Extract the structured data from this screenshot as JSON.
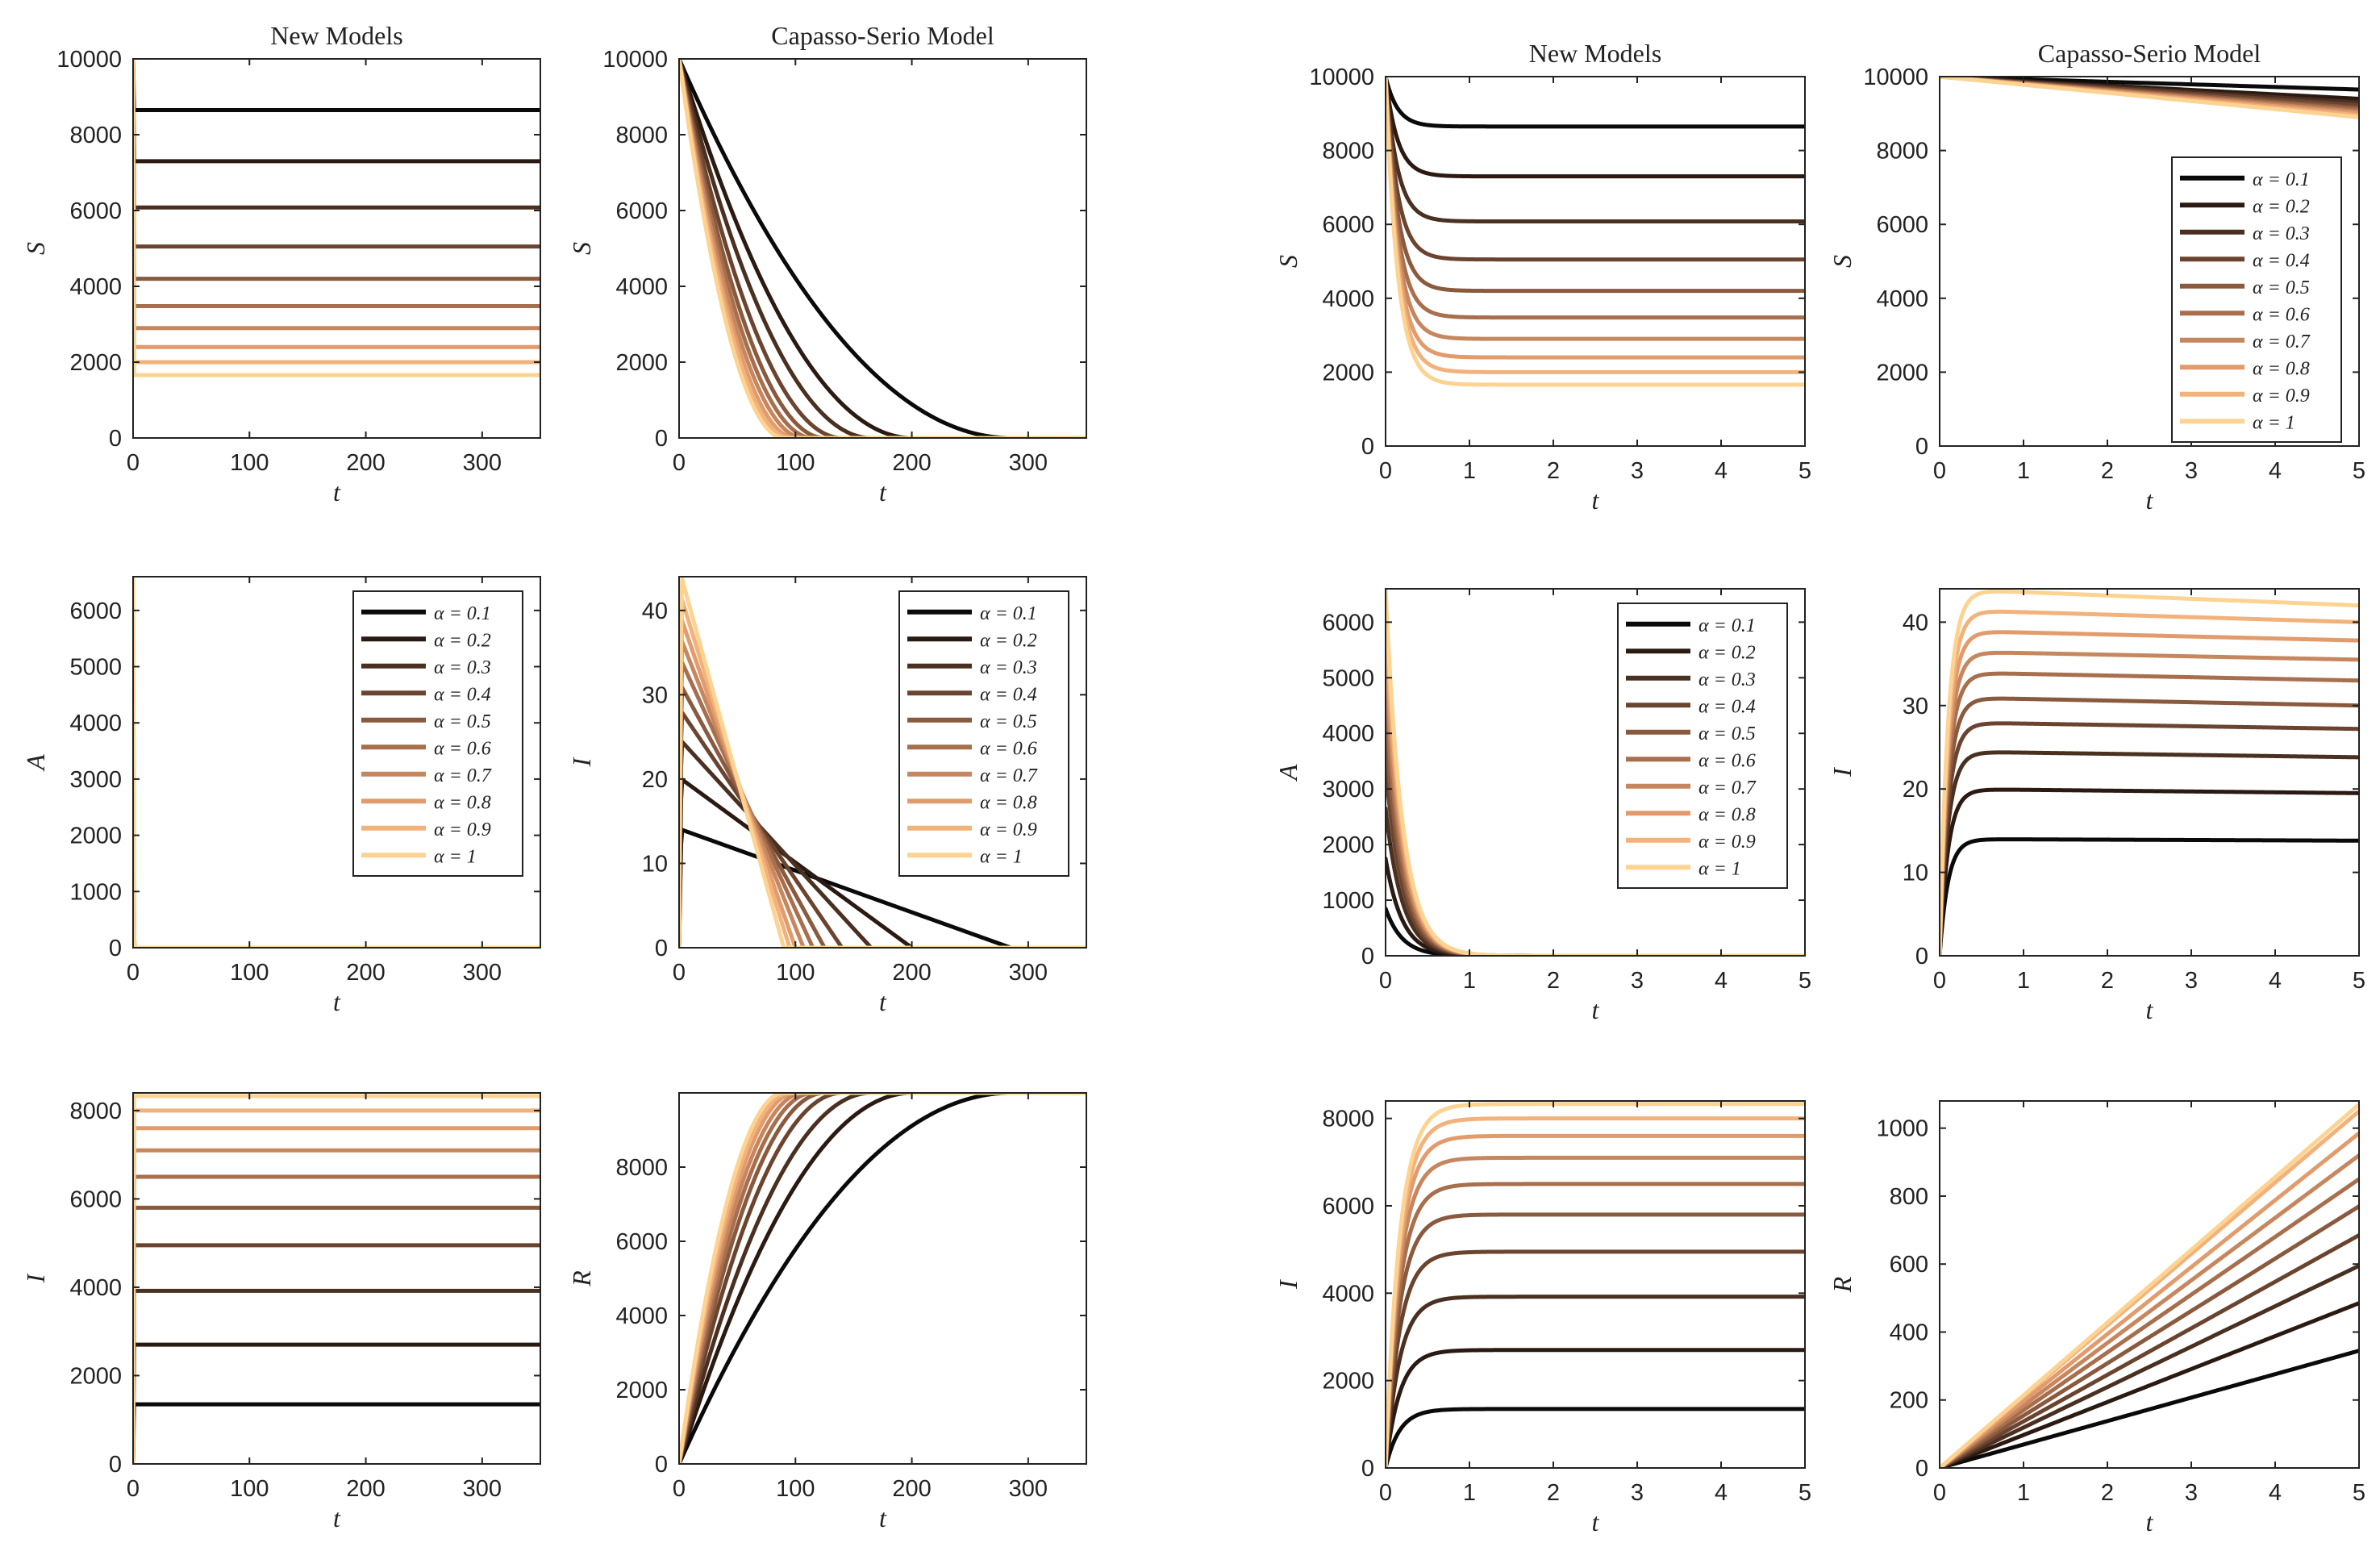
{
  "alpha_colors": [
    "#0a0a0a",
    "#2b1a12",
    "#4a3021",
    "#6b4430",
    "#8a5a3f",
    "#a86f4e",
    "#c6865e",
    "#e19b6c",
    "#f2b27b",
    "#fdd392"
  ],
  "legend": {
    "entries": [
      "α = 0.1",
      "α = 0.2",
      "α = 0.3",
      "α = 0.4",
      "α = 0.5",
      "α = 0.6",
      "α = 0.7",
      "α = 0.8",
      "α = 0.9",
      "α = 1"
    ]
  },
  "chart_data": [
    {
      "id": "new-S-long",
      "type": "line",
      "title": "New Models",
      "xlabel": "t",
      "ylabel": "S",
      "xlim": [
        0,
        350
      ],
      "ylim": [
        0,
        10000
      ],
      "xticks": [
        0,
        100,
        200,
        300
      ],
      "yticks": [
        0,
        2000,
        4000,
        6000,
        8000,
        10000
      ],
      "model": "exp",
      "y0": 10000,
      "plateaus": [
        8650,
        7300,
        6080,
        5050,
        4200,
        3480,
        2900,
        2400,
        2000,
        1660
      ],
      "rates": [
        80,
        80,
        80,
        80,
        80,
        80,
        80,
        80,
        80,
        80
      ],
      "legend": false
    },
    {
      "id": "cs-S-long",
      "type": "line",
      "title": "Capasso-Serio Model",
      "xlabel": "t",
      "ylabel": "S",
      "xlim": [
        0,
        350
      ],
      "ylim": [
        0,
        10000
      ],
      "xticks": [
        0,
        100,
        200,
        300
      ],
      "yticks": [
        0,
        2000,
        4000,
        6000,
        8000,
        10000
      ],
      "model": "quad_down",
      "y0": 10000,
      "t_end": [
        285,
        200,
        165,
        140,
        125,
        115,
        107,
        100,
        95,
        90
      ],
      "legend": false
    },
    {
      "id": "new-A-long",
      "type": "line",
      "title": "",
      "xlabel": "t",
      "ylabel": "A",
      "xlim": [
        0,
        350
      ],
      "ylim": [
        0,
        6600
      ],
      "xticks": [
        0,
        100,
        200,
        300
      ],
      "yticks": [
        0,
        1000,
        2000,
        3000,
        4000,
        5000,
        6000
      ],
      "model": "pulse",
      "peaks": [
        850,
        1750,
        2650,
        3400,
        4050,
        4650,
        5200,
        5700,
        6150,
        6600
      ],
      "rates": [
        4,
        4,
        4,
        4,
        4,
        4,
        4,
        4,
        4,
        4
      ],
      "legend": true,
      "legend_pos": "top-right"
    },
    {
      "id": "cs-I-long",
      "type": "line",
      "title": "",
      "xlabel": "t",
      "ylabel": "I",
      "xlim": [
        0,
        350
      ],
      "ylim": [
        0,
        44
      ],
      "xticks": [
        0,
        100,
        200,
        300
      ],
      "yticks": [
        0,
        10,
        20,
        30,
        40
      ],
      "model": "lin_down",
      "y_peak": [
        14,
        20,
        24.5,
        28,
        31,
        34,
        36.5,
        39,
        41.5,
        44
      ],
      "t_end": [
        285,
        200,
        165,
        140,
        125,
        115,
        107,
        100,
        95,
        90
      ],
      "legend": true,
      "legend_pos": "top-right"
    },
    {
      "id": "new-I-long",
      "type": "line",
      "title": "",
      "xlabel": "t",
      "ylabel": "I",
      "xlim": [
        0,
        350
      ],
      "ylim": [
        0,
        8400
      ],
      "xticks": [
        0,
        100,
        200,
        300
      ],
      "yticks": [
        0,
        2000,
        4000,
        6000,
        8000
      ],
      "model": "sat",
      "plateaus": [
        1350,
        2700,
        3920,
        4950,
        5800,
        6500,
        7100,
        7600,
        8000,
        8330
      ],
      "rates": [
        80,
        80,
        80,
        80,
        80,
        80,
        80,
        80,
        80,
        80
      ],
      "legend": false
    },
    {
      "id": "cs-R-long",
      "type": "line",
      "title": "",
      "xlabel": "t",
      "ylabel": "R",
      "xlim": [
        0,
        350
      ],
      "ylim": [
        0,
        10000
      ],
      "xticks": [
        0,
        100,
        200,
        300
      ],
      "yticks": [
        0,
        2000,
        4000,
        6000,
        8000
      ],
      "model": "quad_up",
      "y_max": 10000,
      "t_end": [
        285,
        200,
        165,
        140,
        125,
        115,
        107,
        100,
        95,
        90
      ],
      "legend": false
    },
    {
      "id": "new-S-short",
      "type": "line",
      "title": "New Models",
      "xlabel": "t",
      "ylabel": "S",
      "xlim": [
        0,
        5
      ],
      "ylim": [
        0,
        10000
      ],
      "xticks": [
        0,
        1,
        2,
        3,
        4,
        5
      ],
      "yticks": [
        0,
        2000,
        4000,
        6000,
        8000,
        10000
      ],
      "model": "exp",
      "y0": 10000,
      "plateaus": [
        8650,
        7300,
        6080,
        5050,
        4200,
        3480,
        2900,
        2400,
        2000,
        1660
      ],
      "rates": [
        7,
        7,
        7,
        7,
        7,
        7,
        7,
        7,
        7,
        7
      ],
      "legend": false
    },
    {
      "id": "cs-S-short",
      "type": "line",
      "title": "Capasso-Serio Model",
      "xlabel": "t",
      "ylabel": "S",
      "xlim": [
        0,
        5
      ],
      "ylim": [
        0,
        10000
      ],
      "xticks": [
        0,
        1,
        2,
        3,
        4,
        5
      ],
      "yticks": [
        0,
        2000,
        4000,
        6000,
        8000,
        10000
      ],
      "model": "linear_slope",
      "y0": 10000,
      "slopes": [
        -70,
        -120,
        -140,
        -155,
        -170,
        -180,
        -190,
        -200,
        -210,
        -220
      ],
      "legend": true,
      "legend_pos": "right"
    },
    {
      "id": "new-A-short",
      "type": "line",
      "title": "",
      "xlabel": "t",
      "ylabel": "A",
      "xlim": [
        0,
        5
      ],
      "ylim": [
        0,
        6600
      ],
      "xticks": [
        0,
        1,
        2,
        3,
        4,
        5
      ],
      "yticks": [
        0,
        1000,
        2000,
        3000,
        4000,
        5000,
        6000
      ],
      "model": "pulse",
      "peaks": [
        850,
        1750,
        2650,
        3400,
        4050,
        4650,
        5200,
        5700,
        6150,
        6600
      ],
      "rates": [
        5,
        5,
        5,
        5,
        5,
        5,
        5,
        5,
        5,
        5
      ],
      "legend": true,
      "legend_pos": "top-right"
    },
    {
      "id": "cs-I-short",
      "type": "line",
      "title": "",
      "xlabel": "t",
      "ylabel": "I",
      "xlim": [
        0,
        5
      ],
      "ylim": [
        0,
        44
      ],
      "xticks": [
        0,
        1,
        2,
        3,
        4,
        5
      ],
      "yticks": [
        0,
        10,
        20,
        30,
        40
      ],
      "model": "rise_decay",
      "peaks": [
        14,
        20,
        24.5,
        28,
        31,
        34,
        36.5,
        39,
        41.5,
        44
      ],
      "end": [
        13.8,
        19.5,
        23.8,
        27.2,
        30,
        33,
        35.5,
        37.8,
        40,
        42
      ],
      "rates": [
        10,
        10,
        10,
        10,
        10,
        10,
        10,
        10,
        10,
        10
      ],
      "legend": false
    },
    {
      "id": "new-I-short",
      "type": "line",
      "title": "",
      "xlabel": "t",
      "ylabel": "I",
      "xlim": [
        0,
        5
      ],
      "ylim": [
        0,
        8400
      ],
      "xticks": [
        0,
        1,
        2,
        3,
        4,
        5
      ],
      "yticks": [
        0,
        2000,
        4000,
        6000,
        8000
      ],
      "model": "sat",
      "plateaus": [
        1350,
        2700,
        3920,
        4950,
        5800,
        6500,
        7100,
        7600,
        8000,
        8330
      ],
      "rates": [
        6,
        6,
        6,
        6,
        6,
        6,
        6,
        6,
        6,
        6
      ],
      "legend": false
    },
    {
      "id": "cs-R-short",
      "type": "line",
      "title": "",
      "xlabel": "t",
      "ylabel": "R",
      "xlim": [
        0,
        5
      ],
      "ylim": [
        0,
        1080
      ],
      "xticks": [
        0,
        1,
        2,
        3,
        4,
        5
      ],
      "yticks": [
        0,
        200,
        400,
        600,
        800,
        1000
      ],
      "model": "linear_slope",
      "y0": 0,
      "slopes": [
        69,
        97,
        119,
        137,
        154,
        170,
        184,
        197,
        210,
        214
      ],
      "legend": false
    }
  ]
}
